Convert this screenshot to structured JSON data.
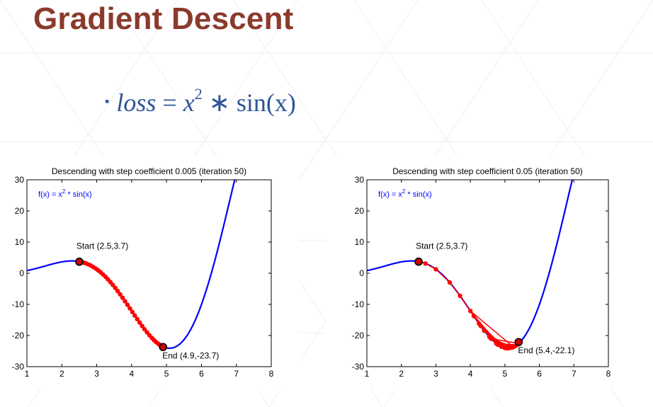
{
  "slide": {
    "title": "Gradient Descent",
    "formula": {
      "bullet": "▪",
      "lhs": "loss",
      "eq": " = ",
      "base": "x",
      "exp": "2",
      "op": " ∗ ",
      "fn": "sin(x)"
    }
  },
  "colors": {
    "title": "#8b3a2b",
    "curve": "#0000ff",
    "steps": "#ff0000",
    "marker_fill": "#cc0000",
    "axes": "#000000"
  },
  "chart_data": [
    {
      "type": "line",
      "title": "Descending with step coefficient 0.005 (iteration 50)",
      "function_label": {
        "prefix": "f(x) = x",
        "exp": "2",
        "suffix": " * sin(x)"
      },
      "function": "x^2*sin(x)",
      "xlim": [
        1,
        8
      ],
      "ylim": [
        -30,
        30
      ],
      "xticks": [
        1,
        2,
        3,
        4,
        5,
        6,
        7,
        8
      ],
      "yticks": [
        30,
        20,
        10,
        0,
        -10,
        -20,
        -30
      ],
      "curve_x_range": [
        1,
        7.3
      ],
      "descent_points_x": [
        2.5,
        2.56,
        2.62,
        2.69,
        2.76,
        2.83,
        2.9,
        2.97,
        3.04,
        3.11,
        3.18,
        3.25,
        3.32,
        3.39,
        3.46,
        3.53,
        3.6,
        3.67,
        3.74,
        3.81,
        3.88,
        3.95,
        4.02,
        4.09,
        4.16,
        4.23,
        4.3,
        4.37,
        4.44,
        4.51,
        4.58,
        4.64,
        4.7,
        4.76,
        4.8,
        4.84,
        4.87,
        4.89,
        4.9
      ],
      "start": {
        "x": 2.5,
        "y": 3.7,
        "label": "Start (2.5,3.7)"
      },
      "end": {
        "x": 4.9,
        "y": -23.7,
        "label": "End (4.9,-23.7)"
      }
    },
    {
      "type": "line",
      "title": "Descending with step coefficient 0.05 (iteration 50)",
      "function_label": {
        "prefix": "f(x) = x",
        "exp": "2",
        "suffix": " * sin(x)"
      },
      "function": "x^2*sin(x)",
      "xlim": [
        1,
        8
      ],
      "ylim": [
        -30,
        30
      ],
      "xticks": [
        1,
        2,
        3,
        4,
        5,
        6,
        7,
        8
      ],
      "yticks": [
        30,
        20,
        10,
        0,
        -10,
        -20,
        -30
      ],
      "curve_x_range": [
        1,
        7.3
      ],
      "descent_points_x": [
        2.5,
        2.7,
        3.0,
        3.4,
        3.7,
        4.1,
        4.3,
        4.6,
        4.8,
        5.05,
        5.2,
        5.3,
        5.12,
        5.0,
        5.3,
        4.9,
        5.35,
        4.75,
        5.2,
        4.55,
        5.1,
        4.4,
        5.0,
        4.25,
        4.9,
        4.1,
        4.8,
        4.0,
        5.25,
        4.6,
        5.4
      ],
      "start": {
        "x": 2.5,
        "y": 3.7,
        "label": "Start (2.5,3.7)"
      },
      "end": {
        "x": 5.4,
        "y": -22.1,
        "label": "End (5.4,-22.1)"
      }
    }
  ]
}
